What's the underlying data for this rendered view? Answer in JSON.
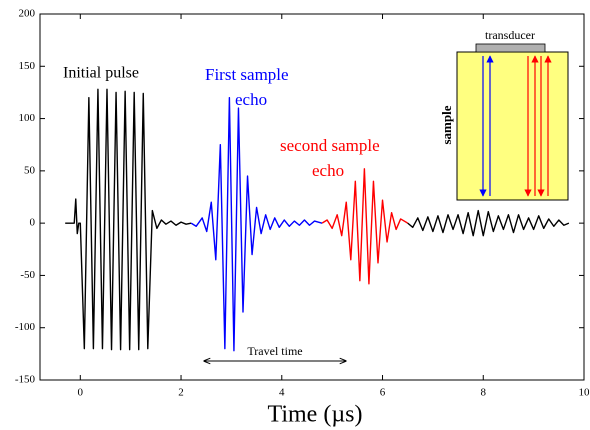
{
  "chart_data": {
    "type": "line",
    "xlabel": "Time (µs)",
    "xlim": [
      -0.8,
      10
    ],
    "xticks": [
      0,
      2,
      4,
      6,
      8,
      10
    ],
    "ylim": [
      -150,
      200
    ],
    "yticks": [
      -150,
      -100,
      -50,
      0,
      50,
      100,
      150,
      200
    ],
    "series": [
      {
        "color": "#000000",
        "x": [
          -0.3,
          -0.12,
          -0.09,
          -0.06,
          -0.03,
          0.0,
          0.08,
          0.17,
          0.26,
          0.35,
          0.44,
          0.53,
          0.62,
          0.71,
          0.8,
          0.89,
          0.98,
          1.07,
          1.16,
          1.25,
          1.34,
          1.43,
          1.52,
          1.61,
          1.7,
          1.8,
          1.9,
          2.0,
          2.1,
          2.2
        ],
        "values": [
          0,
          0,
          23,
          -10,
          0,
          0,
          -120,
          120,
          -120,
          128,
          -120,
          128,
          -121,
          125,
          -121,
          126,
          -121,
          125,
          -121,
          124,
          -120,
          12,
          -5,
          3,
          -1,
          2,
          -2,
          1,
          -1,
          0
        ]
      },
      {
        "color": "#0000ff",
        "x": [
          2.2,
          2.3,
          2.42,
          2.51,
          2.6,
          2.69,
          2.78,
          2.87,
          2.96,
          3.05,
          3.14,
          3.23,
          3.32,
          3.41,
          3.5,
          3.59,
          3.68,
          3.77,
          3.86,
          3.95,
          4.05,
          4.15,
          4.25,
          4.35,
          4.45,
          4.55,
          4.65,
          4.8
        ],
        "values": [
          0,
          -3,
          5,
          -8,
          20,
          -35,
          75,
          -120,
          120,
          -122,
          110,
          -85,
          45,
          -30,
          15,
          -10,
          8,
          -6,
          5,
          -4,
          3,
          -3,
          2,
          -2,
          3,
          -2,
          2,
          0
        ]
      },
      {
        "color": "#ff0000",
        "x": [
          4.8,
          4.9,
          5.0,
          5.1,
          5.19,
          5.28,
          5.37,
          5.46,
          5.55,
          5.64,
          5.73,
          5.82,
          5.91,
          6.0,
          6.09,
          6.18,
          6.27,
          6.36,
          6.5
        ],
        "values": [
          0,
          3,
          -5,
          8,
          -12,
          20,
          -35,
          40,
          -55,
          52,
          -58,
          40,
          -38,
          22,
          -18,
          10,
          -6,
          4,
          0
        ]
      },
      {
        "color": "#000000",
        "x": [
          6.5,
          6.6,
          6.7,
          6.8,
          6.9,
          7.0,
          7.1,
          7.2,
          7.3,
          7.4,
          7.5,
          7.6,
          7.7,
          7.8,
          7.9,
          8.0,
          8.1,
          8.2,
          8.3,
          8.4,
          8.5,
          8.6,
          8.7,
          8.8,
          8.9,
          9.0,
          9.1,
          9.2,
          9.3,
          9.4,
          9.5,
          9.6,
          9.7
        ],
        "values": [
          0,
          -4,
          5,
          -7,
          6,
          -8,
          7,
          -9,
          8,
          -6,
          8,
          -10,
          10,
          -12,
          12,
          -12,
          11,
          -8,
          7,
          -6,
          8,
          -9,
          8,
          -6,
          5,
          -6,
          7,
          -5,
          4,
          -3,
          3,
          -2,
          0
        ]
      }
    ],
    "annotations": [
      {
        "text": "Initial pulse",
        "color": "#000000"
      },
      {
        "text": "First sample",
        "color": "#0000ff"
      },
      {
        "text": "echo",
        "color": "#0000ff"
      },
      {
        "text": "second sample",
        "color": "#ff0000"
      },
      {
        "text": "echo",
        "color": "#ff0000"
      },
      {
        "text": "Travel time",
        "color": "#000000"
      }
    ],
    "inset": {
      "top_label": "transducer",
      "side_label": "sample"
    }
  }
}
